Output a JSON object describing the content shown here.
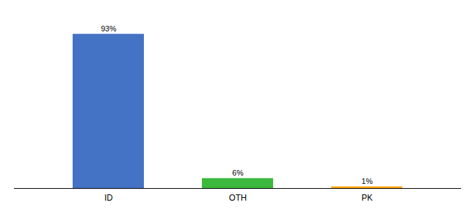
{
  "chart_data": {
    "type": "bar",
    "categories": [
      "ID",
      "OTH",
      "PK"
    ],
    "values": [
      93,
      6,
      1
    ],
    "value_labels": [
      "93%",
      "6%",
      "1%"
    ],
    "colors": [
      "#4472C4",
      "#3CB83C",
      "#FFA500"
    ],
    "ylim": [
      0,
      105
    ],
    "data_labels": true,
    "tick_labels": "x"
  }
}
